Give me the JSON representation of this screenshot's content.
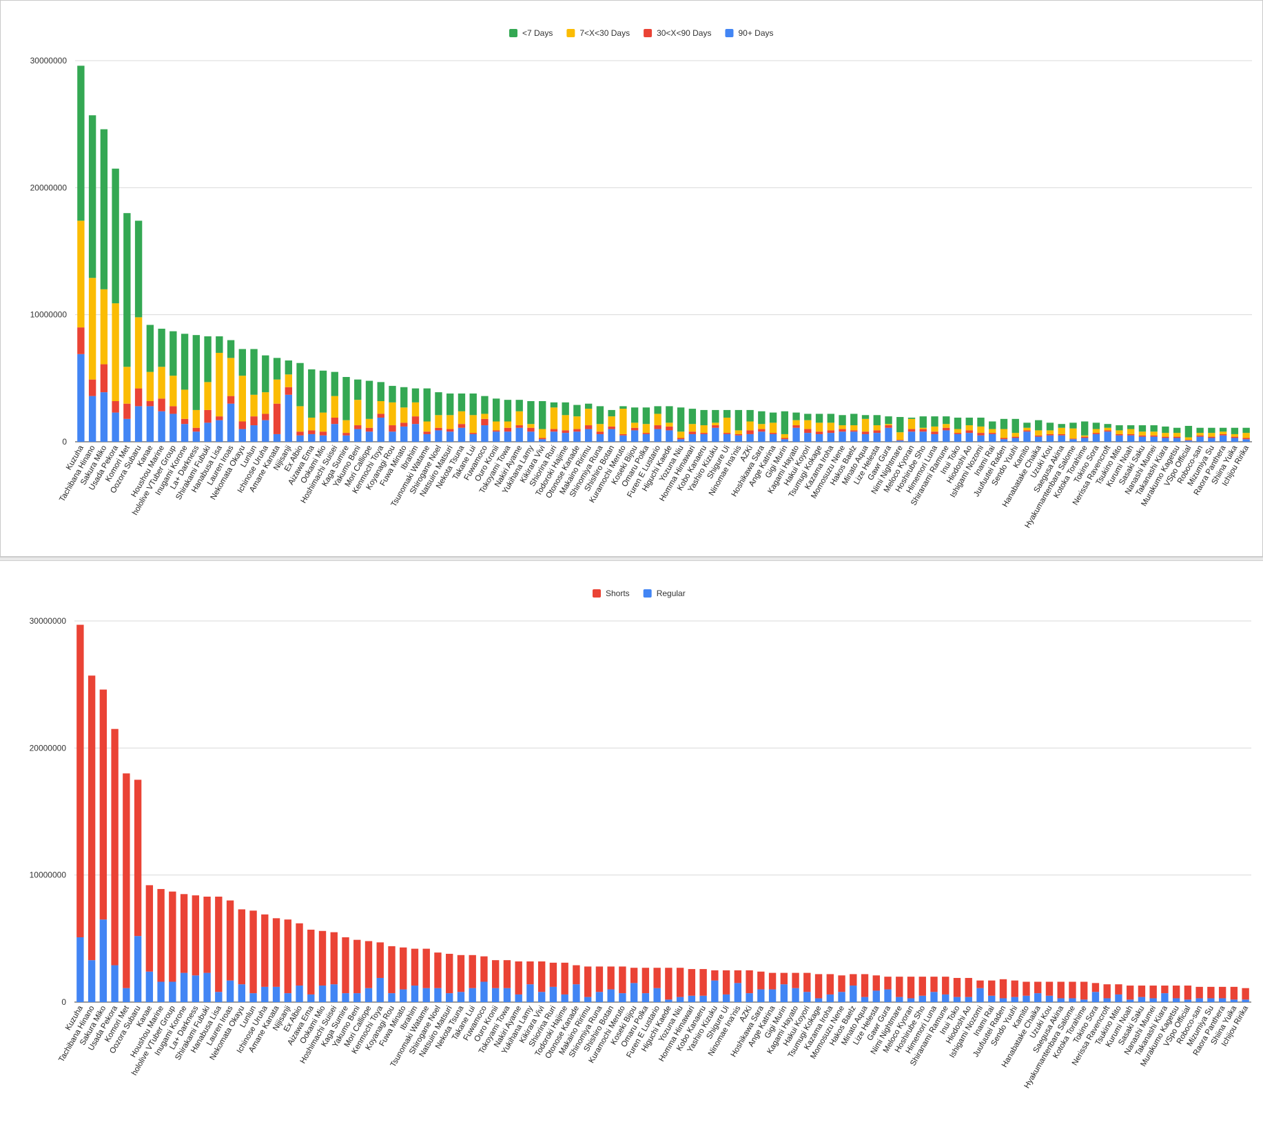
{
  "chart_data": [
    {
      "type": "bar",
      "stacked": true,
      "legend_position": "top",
      "grid": true,
      "ylim": [
        0,
        30000000
      ],
      "yticks": [
        "0",
        "10000000",
        "20000000",
        "30000000"
      ],
      "categories": [
        "Kuzuha",
        "Tachibana Hinano",
        "Sakura Miko",
        "Usada Pekora",
        "Komori Met",
        "Oozora Subaru",
        "Kanae",
        "Houshou Marine",
        "hololive VTuber Group",
        "Inugami Korone",
        "La+ Darkness",
        "Shirakami Fubuki",
        "Hanabusa Lisa",
        "Lauren Iroas",
        "Nekomata Okayu",
        "Lunlun",
        "Ichinose Uruha",
        "Amane Kanata",
        "Nijisanji",
        "Ex Albio",
        "Aizawa Ema",
        "Ookami Mio",
        "Hoshimachi Suisei",
        "Kaga Sumire",
        "Yakumo Beni",
        "Mori Calliope",
        "Kenmochi Toya",
        "Koyanagi Rou",
        "Fuwa Minato",
        "Ibrahim",
        "Tsunomaki Watame",
        "Shirogane Noel",
        "Natsuiro Matsuri",
        "Nekota Tsuna",
        "Takane Lui",
        "Fuwamoco",
        "Ouro Kronii",
        "Tokoyami Towa",
        "Nakiri Ayame",
        "Yukihana Lamy",
        "Kikirara Vivi",
        "Shiorina Ruri",
        "Todoroki Hajime",
        "Otonose Kanade",
        "Makaino Ririmu",
        "Shinomiya Runa",
        "Shishiro Botan",
        "Kuramochi Meruto",
        "Koseki Bijou",
        "Omaru Polka",
        "Furen E Lustario",
        "Higuchi Kaede",
        "Yozuna Niu",
        "Homma Himawari",
        "Kobo Kanaeru",
        "Yashiro Kizuku",
        "Shigure Ui",
        "Ninomae Ina'nis",
        "AZKi",
        "Hoshikawa Sara",
        "Ange Katrina",
        "Gigi Murin",
        "Kagami Hayato",
        "Hakui Koyori",
        "Tsumugi Kokage",
        "Kazama Iroha",
        "Momosuzu Nene",
        "Hakos Baelz",
        "Minato Aqua",
        "Lize Helesta",
        "Gawr Gura",
        "Nimi Nightmare",
        "Meloco Kyoran",
        "Hoshirube Sho",
        "Himemori Luna",
        "Shiranami Ramune",
        "Inui Toko",
        "Hiodoshi Ao",
        "Ishigami Nozomi",
        "Inami Rai",
        "Juufuutei Raden",
        "Sendo Yuuhi",
        "Kamito",
        "Hanabatake Chaika",
        "Uzuki Kou",
        "Saegusa Akina",
        "Hyakumantenbara Salome",
        "Kotoka Torahime",
        "Tokino Sora",
        "Nerissa Ravencroft",
        "Tsukino Mito",
        "Kurumi Noah",
        "Sasaki Saku",
        "Nanashi Mumei",
        "Takanashi Kiara",
        "Murakumo Kagetsu",
        "VSpo Official",
        "Roboco-san",
        "Mizumiya Su",
        "Raora Panthera",
        "Shiina Yuika",
        "Ichijou Ririka"
      ],
      "series": [
        {
          "name": "90+ Days",
          "color": "#4285f4",
          "values": [
            6900000,
            3600000,
            3900000,
            2300000,
            1800000,
            2800000,
            2800000,
            2400000,
            2200000,
            1400000,
            800000,
            1500000,
            1700000,
            3000000,
            1000000,
            1300000,
            1700000,
            600000,
            3700000,
            500000,
            600000,
            500000,
            1400000,
            500000,
            1000000,
            800000,
            1900000,
            800000,
            1200000,
            1400000,
            600000,
            900000,
            800000,
            1100000,
            600000,
            1300000,
            800000,
            800000,
            1100000,
            800000,
            200000,
            800000,
            700000,
            800000,
            1000000,
            600000,
            1000000,
            500000,
            900000,
            600000,
            1000000,
            900000,
            200000,
            600000,
            600000,
            1100000,
            600000,
            500000,
            600000,
            800000,
            600000,
            200000,
            1100000,
            700000,
            600000,
            700000,
            800000,
            800000,
            600000,
            700000,
            1100000,
            100000,
            800000,
            800000,
            600000,
            900000,
            600000,
            700000,
            500000,
            600000,
            200000,
            300000,
            800000,
            400000,
            500000,
            500000,
            200000,
            300000,
            600000,
            800000,
            500000,
            500000,
            400000,
            400000,
            300000,
            300000,
            100000,
            400000,
            300000,
            500000,
            300000,
            200000
          ]
        },
        {
          "name": "30<X<90 Days",
          "color": "#ea4335",
          "values": [
            2100000,
            1300000,
            2200000,
            900000,
            1200000,
            1400000,
            400000,
            1000000,
            600000,
            400000,
            300000,
            1000000,
            300000,
            600000,
            600000,
            700000,
            500000,
            2400000,
            600000,
            300000,
            300000,
            300000,
            500000,
            200000,
            300000,
            300000,
            300000,
            500000,
            300000,
            600000,
            200000,
            200000,
            200000,
            300000,
            100000,
            500000,
            100000,
            300000,
            200000,
            300000,
            100000,
            200000,
            200000,
            200000,
            300000,
            200000,
            200000,
            100000,
            200000,
            100000,
            300000,
            300000,
            100000,
            200000,
            100000,
            200000,
            100000,
            100000,
            300000,
            200000,
            100000,
            100000,
            200000,
            300000,
            200000,
            200000,
            200000,
            100000,
            200000,
            200000,
            200000,
            50000,
            200000,
            200000,
            200000,
            200000,
            100000,
            200000,
            200000,
            100000,
            100000,
            100000,
            100000,
            100000,
            100000,
            100000,
            50000,
            100000,
            100000,
            100000,
            100000,
            100000,
            100000,
            100000,
            100000,
            100000,
            50000,
            100000,
            100000,
            100000,
            100000,
            100000
          ]
        },
        {
          "name": "7<X<30 Days",
          "color": "#fbbc04",
          "values": [
            8400000,
            8000000,
            5900000,
            7700000,
            2900000,
            5600000,
            2300000,
            2500000,
            2400000,
            2300000,
            1400000,
            2200000,
            5000000,
            3000000,
            3600000,
            1700000,
            1700000,
            1900000,
            1000000,
            2000000,
            1000000,
            1500000,
            1700000,
            1000000,
            2000000,
            700000,
            1000000,
            1800000,
            1200000,
            1100000,
            800000,
            1000000,
            1100000,
            1000000,
            1400000,
            400000,
            700000,
            500000,
            1100000,
            300000,
            700000,
            1700000,
            1200000,
            1000000,
            1300000,
            600000,
            800000,
            2000000,
            400000,
            700000,
            900000,
            300000,
            500000,
            600000,
            600000,
            200000,
            1200000,
            300000,
            700000,
            400000,
            800000,
            300000,
            400000,
            700000,
            700000,
            600000,
            300000,
            400000,
            1000000,
            400000,
            100000,
            600000,
            800000,
            100000,
            400000,
            300000,
            300000,
            400000,
            500000,
            300000,
            700000,
            300000,
            200000,
            400000,
            300000,
            500000,
            800000,
            100000,
            300000,
            200000,
            300000,
            400000,
            300000,
            300000,
            300000,
            300000,
            200000,
            200000,
            300000,
            200000,
            200000,
            400000
          ]
        },
        {
          "name": "<7 Days",
          "color": "#34a853",
          "values": [
            12200000,
            12800000,
            12600000,
            10600000,
            12100000,
            7600000,
            3700000,
            3000000,
            3500000,
            4400000,
            5900000,
            3600000,
            1300000,
            1400000,
            2100000,
            3600000,
            2900000,
            1700000,
            1100000,
            3400000,
            3800000,
            3300000,
            1900000,
            3400000,
            1600000,
            3000000,
            1500000,
            1300000,
            1600000,
            1100000,
            2600000,
            1800000,
            1700000,
            1400000,
            1700000,
            1400000,
            1800000,
            1700000,
            900000,
            1800000,
            2200000,
            400000,
            1000000,
            900000,
            400000,
            1400000,
            500000,
            200000,
            1200000,
            1300000,
            600000,
            1300000,
            1900000,
            1200000,
            1200000,
            1000000,
            600000,
            1600000,
            900000,
            1000000,
            800000,
            1800000,
            600000,
            500000,
            700000,
            700000,
            800000,
            900000,
            300000,
            800000,
            600000,
            1200000,
            100000,
            900000,
            800000,
            600000,
            900000,
            600000,
            700000,
            600000,
            800000,
            1100000,
            400000,
            800000,
            600000,
            300000,
            450000,
            1100000,
            500000,
            300000,
            400000,
            300000,
            500000,
            500000,
            500000,
            400000,
            900000,
            400000,
            400000,
            300000,
            500000,
            400000
          ]
        }
      ]
    },
    {
      "type": "bar",
      "stacked": true,
      "legend_position": "top",
      "grid": true,
      "ylim": [
        0,
        30000000
      ],
      "yticks": [
        "0",
        "10000000",
        "20000000",
        "30000000"
      ],
      "categories": [
        "Kuzuha",
        "Tachibana Hinano",
        "Sakura Miko",
        "Usada Pekora",
        "Komori Met",
        "Oozora Subaru",
        "Kanae",
        "Houshou Marine",
        "hololive VTuber Group",
        "Inugami Korone",
        "La+ Darkness",
        "Shirakami Fubuki",
        "Hanabusa Lisa",
        "Lauren Iroas",
        "Nekomata Okayu",
        "Lunlun",
        "Ichinose Uruha",
        "Amane Kanata",
        "Nijisanji",
        "Ex Albio",
        "Aizawa Ema",
        "Ookami Mio",
        "Hoshimachi Suisei",
        "Kaga Sumire",
        "Yakumo Beni",
        "Mori Calliope",
        "Kenmochi Toya",
        "Koyanagi Rou",
        "Fuwa Minato",
        "Ibrahim",
        "Tsunomaki Watame",
        "Shirogane Noel",
        "Natsuiro Matsuri",
        "Nekota Tsuna",
        "Takane Lui",
        "Fuwamoco",
        "Ouro Kronii",
        "Tokoyami Towa",
        "Nakiri Ayame",
        "Yukihana Lamy",
        "Kikirara Vivi",
        "Shiorina Ruri",
        "Todoroki Hajime",
        "Otonose Kanade",
        "Makaino Ririmu",
        "Shinomiya Runa",
        "Shishiro Botan",
        "Kuramochi Meruto",
        "Koseki Bijou",
        "Omaru Polka",
        "Furen E Lustario",
        "Higuchi Kaede",
        "Yozuna Niu",
        "Homma Himawari",
        "Kobo Kanaeru",
        "Yashiro Kizuku",
        "Shigure Ui",
        "Ninomae Ina'nis",
        "AZKi",
        "Hoshikawa Sara",
        "Ange Katrina",
        "Gigi Murin",
        "Kagami Hayato",
        "Hakui Koyori",
        "Tsumugi Kokage",
        "Kazama Iroha",
        "Momosuzu Nene",
        "Hakos Baelz",
        "Minato Aqua",
        "Lize Helesta",
        "Gawr Gura",
        "Nimi Nightmare",
        "Meloco Kyoran",
        "Hoshirube Sho",
        "Himemori Luna",
        "Shiranami Ramune",
        "Inui Toko",
        "Hiodoshi Ao",
        "Ishigami Nozomi",
        "Inami Rai",
        "Juufuutei Raden",
        "Sendo Yuuhi",
        "Kamito",
        "Hanabatake Chaika",
        "Uzuki Kou",
        "Saegusa Akina",
        "Hyakumantenbara Salome",
        "Kotoka Torahime",
        "Tokino Sora",
        "Nerissa Ravencroft",
        "Tsukino Mito",
        "Kurumi Noah",
        "Sasaki Saku",
        "Nanashi Mumei",
        "Takanashi Kiara",
        "Murakumo Kagetsu",
        "VSpo Official",
        "Roboco-san",
        "Mizumiya Su",
        "Raora Panthera",
        "Shiina Yuika",
        "Ichijou Ririka"
      ],
      "series": [
        {
          "name": "Regular",
          "color": "#4285f4",
          "values": [
            5100000,
            3300000,
            6500000,
            2900000,
            1100000,
            5200000,
            2400000,
            1600000,
            1600000,
            2300000,
            2100000,
            2300000,
            800000,
            1700000,
            1400000,
            700000,
            1200000,
            1200000,
            700000,
            1300000,
            600000,
            1300000,
            1400000,
            700000,
            700000,
            1100000,
            1900000,
            700000,
            1000000,
            1300000,
            1100000,
            1100000,
            700000,
            800000,
            1100000,
            1600000,
            1100000,
            1100000,
            600000,
            1400000,
            800000,
            1200000,
            600000,
            1400000,
            400000,
            800000,
            1000000,
            700000,
            1500000,
            700000,
            1100000,
            200000,
            400000,
            500000,
            500000,
            1700000,
            600000,
            1500000,
            700000,
            1000000,
            1000000,
            1400000,
            1100000,
            800000,
            300000,
            600000,
            800000,
            1300000,
            400000,
            900000,
            1000000,
            400000,
            300000,
            500000,
            800000,
            600000,
            400000,
            400000,
            1100000,
            500000,
            300000,
            400000,
            500000,
            700000,
            500000,
            300000,
            300000,
            200000,
            800000,
            300000,
            600000,
            200000,
            400000,
            300000,
            700000,
            300000,
            200000,
            300000,
            300000,
            300000,
            200000,
            200000
          ]
        },
        {
          "name": "Shorts",
          "color": "#ea4335",
          "values": [
            24600000,
            22400000,
            18100000,
            18600000,
            16900000,
            12300000,
            6800000,
            7300000,
            7100000,
            6200000,
            6300000,
            6000000,
            7500000,
            6300000,
            5900000,
            6500000,
            5700000,
            5400000,
            5800000,
            4900000,
            5100000,
            4300000,
            4100000,
            4400000,
            4200000,
            3700000,
            2800000,
            3700000,
            3300000,
            2900000,
            3100000,
            2800000,
            3100000,
            2900000,
            2600000,
            2000000,
            2200000,
            2200000,
            2600000,
            1800000,
            2400000,
            1900000,
            2500000,
            1500000,
            2400000,
            2000000,
            1800000,
            2100000,
            1200000,
            2000000,
            1600000,
            2500000,
            2300000,
            2100000,
            2100000,
            800000,
            1900000,
            1000000,
            1800000,
            1400000,
            1300000,
            900000,
            1200000,
            1500000,
            1900000,
            1600000,
            1300000,
            900000,
            1800000,
            1200000,
            1000000,
            1600000,
            1700000,
            1500000,
            1200000,
            1400000,
            1500000,
            1500000,
            600000,
            1200000,
            1500000,
            1300000,
            1100000,
            900000,
            1100000,
            1300000,
            1300000,
            1400000,
            700000,
            1100000,
            800000,
            1100000,
            900000,
            1000000,
            600000,
            1000000,
            1100000,
            900000,
            900000,
            900000,
            1000000,
            900000
          ]
        }
      ]
    }
  ]
}
